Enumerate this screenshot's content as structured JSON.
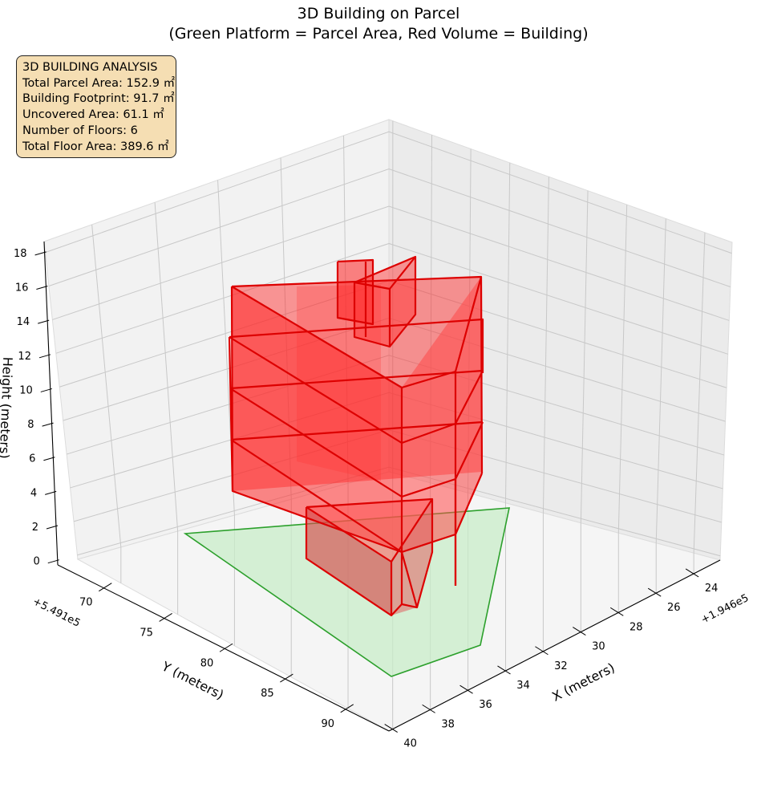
{
  "chart_data": {
    "type": "3d-polygons",
    "title_line1": "3D Building on Parcel",
    "title_line2": "(Green Platform = Parcel Area, Red Volume = Building)",
    "info_box": {
      "heading": "3D BUILDING ANALYSIS",
      "lines": [
        "Total Parcel Area: 152.9 ㎡",
        "Building Footprint: 91.7 ㎡",
        "Uncovered Area: 61.1 ㎡",
        "Number of Floors: 6",
        "Total Floor Area: 389.6 ㎡"
      ]
    },
    "axes": {
      "x": {
        "label": "X (meters)",
        "offset": "+1.946e5",
        "ticks": [
          "24",
          "26",
          "28",
          "30",
          "32",
          "34",
          "36",
          "38",
          "40"
        ]
      },
      "y": {
        "label": "Y (meters)",
        "offset": "+5.491e5",
        "ticks": [
          "70",
          "75",
          "80",
          "85",
          "90"
        ]
      },
      "z": {
        "label": "Height (meters)",
        "ticks": [
          "0",
          "2",
          "4",
          "6",
          "8",
          "10",
          "12",
          "14",
          "16",
          "18"
        ]
      }
    },
    "colors": {
      "parcel_fill": "#d6f2d6",
      "parcel_edge": "#2ca02c",
      "building_edge": "#dd0000",
      "building_fill": "#ff0000",
      "info_bg": "#f5deb3"
    }
  }
}
